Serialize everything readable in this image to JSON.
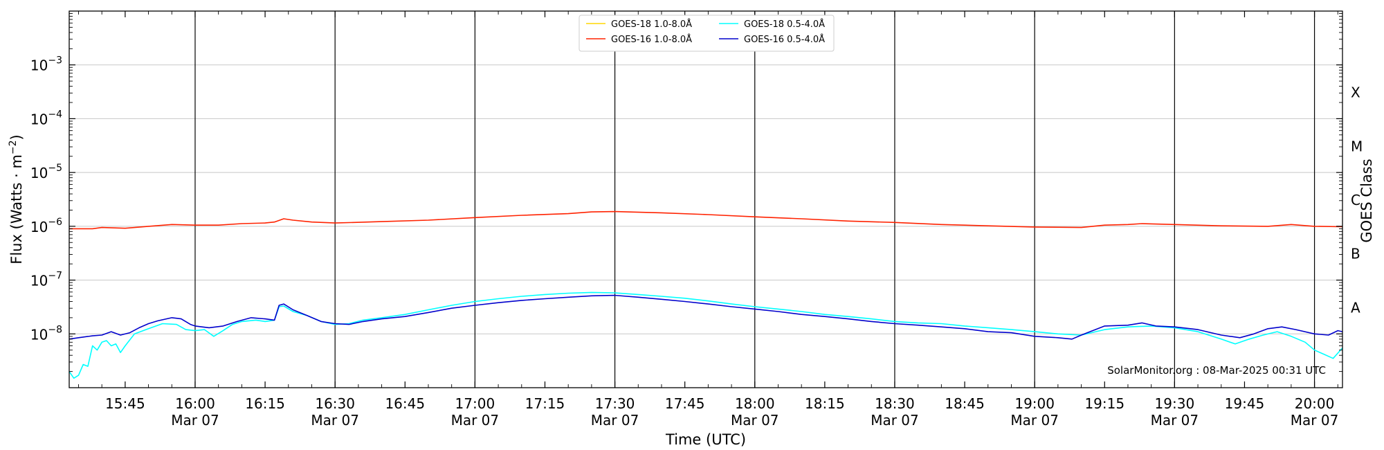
{
  "chart_data": {
    "type": "line",
    "title": "",
    "xlabel": "Time (UTC)",
    "ylabel_main": "Flux (Watts · m",
    "ylabel_sup": "−2",
    "ylabel_close": ")",
    "y2label": "GOES Class",
    "yscale": "log",
    "ylim": [
      1e-09,
      0.01
    ],
    "xlim": [
      "15:33",
      "20:06"
    ],
    "y_ticks": [
      {
        "value": 1e-08,
        "mant": "10",
        "exp": "−8"
      },
      {
        "value": 1e-07,
        "mant": "10",
        "exp": "−7"
      },
      {
        "value": 1e-06,
        "mant": "10",
        "exp": "−6"
      },
      {
        "value": 1e-05,
        "mant": "10",
        "exp": "−5"
      },
      {
        "value": 0.0001,
        "mant": "10",
        "exp": "−4"
      },
      {
        "value": 0.001,
        "mant": "10",
        "exp": "−3"
      }
    ],
    "goes_classes": [
      {
        "label": "A",
        "value": 3.16e-08
      },
      {
        "label": "B",
        "value": 3.16e-07
      },
      {
        "label": "C",
        "value": 3.16e-06
      },
      {
        "label": "M",
        "value": 3.16e-05
      },
      {
        "label": "X",
        "value": 0.000316
      }
    ],
    "x_ticks": [
      {
        "time": "15:45",
        "date": ""
      },
      {
        "time": "16:00",
        "date": "Mar 07"
      },
      {
        "time": "16:15",
        "date": ""
      },
      {
        "time": "16:30",
        "date": "Mar 07"
      },
      {
        "time": "16:45",
        "date": ""
      },
      {
        "time": "17:00",
        "date": "Mar 07"
      },
      {
        "time": "17:15",
        "date": ""
      },
      {
        "time": "17:30",
        "date": "Mar 07"
      },
      {
        "time": "17:45",
        "date": ""
      },
      {
        "time": "18:00",
        "date": "Mar 07"
      },
      {
        "time": "18:15",
        "date": ""
      },
      {
        "time": "18:30",
        "date": "Mar 07"
      },
      {
        "time": "18:45",
        "date": ""
      },
      {
        "time": "19:00",
        "date": "Mar 07"
      },
      {
        "time": "19:15",
        "date": ""
      },
      {
        "time": "19:30",
        "date": "Mar 07"
      },
      {
        "time": "19:45",
        "date": ""
      },
      {
        "time": "20:00",
        "date": "Mar 07"
      }
    ],
    "vertical_lines": [
      "16:00",
      "16:30",
      "17:00",
      "17:30",
      "18:00",
      "18:30",
      "19:00",
      "19:30",
      "20:00"
    ],
    "grid": true,
    "legend_position": "top-center",
    "watermark": "SolarMonitor.org : 08-Mar-2025 00:31 UTC",
    "series": [
      {
        "name": "GOES-18 1.0-8.0Å",
        "color": "#ffd700",
        "points": []
      },
      {
        "name": "GOES-18 0.5-4.0Å",
        "color": "#00ffff",
        "points": [
          [
            "15:33",
            2e-09
          ],
          [
            "15:34",
            1.5e-09
          ],
          [
            "15:35",
            1.7e-09
          ],
          [
            "15:36",
            2.7e-09
          ],
          [
            "15:37",
            2.5e-09
          ],
          [
            "15:38",
            6e-09
          ],
          [
            "15:39",
            5e-09
          ],
          [
            "15:40",
            7e-09
          ],
          [
            "15:41",
            7.5e-09
          ],
          [
            "15:42",
            6e-09
          ],
          [
            "15:43",
            6.5e-09
          ],
          [
            "15:44",
            4.5e-09
          ],
          [
            "15:45",
            6e-09
          ],
          [
            "15:47",
            1e-08
          ],
          [
            "15:50",
            1.25e-08
          ],
          [
            "15:53",
            1.55e-08
          ],
          [
            "15:56",
            1.5e-08
          ],
          [
            "15:58",
            1.2e-08
          ],
          [
            "16:00",
            1.15e-08
          ],
          [
            "16:02",
            1.2e-08
          ],
          [
            "16:04",
            9e-09
          ],
          [
            "16:06",
            1.15e-08
          ],
          [
            "16:08",
            1.5e-08
          ],
          [
            "16:10",
            1.7e-08
          ],
          [
            "16:13",
            1.8e-08
          ],
          [
            "16:15",
            1.7e-08
          ],
          [
            "16:17",
            1.8e-08
          ],
          [
            "16:18",
            3.2e-08
          ],
          [
            "16:19",
            3.3e-08
          ],
          [
            "16:21",
            2.6e-08
          ],
          [
            "16:24",
            2.2e-08
          ],
          [
            "16:27",
            1.7e-08
          ],
          [
            "16:30",
            1.5e-08
          ],
          [
            "16:33",
            1.55e-08
          ],
          [
            "16:36",
            1.8e-08
          ],
          [
            "16:40",
            2e-08
          ],
          [
            "16:45",
            2.3e-08
          ],
          [
            "16:50",
            2.8e-08
          ],
          [
            "16:55",
            3.4e-08
          ],
          [
            "17:00",
            4e-08
          ],
          [
            "17:05",
            4.5e-08
          ],
          [
            "17:10",
            5e-08
          ],
          [
            "17:15",
            5.4e-08
          ],
          [
            "17:20",
            5.7e-08
          ],
          [
            "17:25",
            5.9e-08
          ],
          [
            "17:30",
            5.8e-08
          ],
          [
            "17:35",
            5.4e-08
          ],
          [
            "17:40",
            5e-08
          ],
          [
            "17:45",
            4.6e-08
          ],
          [
            "17:50",
            4.1e-08
          ],
          [
            "17:55",
            3.6e-08
          ],
          [
            "18:00",
            3.2e-08
          ],
          [
            "18:05",
            2.9e-08
          ],
          [
            "18:10",
            2.6e-08
          ],
          [
            "18:15",
            2.3e-08
          ],
          [
            "18:20",
            2.1e-08
          ],
          [
            "18:25",
            1.9e-08
          ],
          [
            "18:30",
            1.7e-08
          ],
          [
            "18:35",
            1.6e-08
          ],
          [
            "18:40",
            1.55e-08
          ],
          [
            "18:45",
            1.4e-08
          ],
          [
            "18:50",
            1.3e-08
          ],
          [
            "18:55",
            1.2e-08
          ],
          [
            "19:00",
            1.1e-08
          ],
          [
            "19:05",
            1e-08
          ],
          [
            "19:10",
            9.5e-09
          ],
          [
            "19:15",
            1.2e-08
          ],
          [
            "19:20",
            1.35e-08
          ],
          [
            "19:25",
            1.4e-08
          ],
          [
            "19:30",
            1.3e-08
          ],
          [
            "19:35",
            1.1e-08
          ],
          [
            "19:40",
            8e-09
          ],
          [
            "19:43",
            6.5e-09
          ],
          [
            "19:46",
            8e-09
          ],
          [
            "19:49",
            9.5e-09
          ],
          [
            "19:52",
            1.1e-08
          ],
          [
            "19:55",
            9e-09
          ],
          [
            "19:58",
            7e-09
          ],
          [
            "20:00",
            5e-09
          ],
          [
            "20:02",
            4.2e-09
          ],
          [
            "20:04",
            3.5e-09
          ],
          [
            "20:06",
            5.5e-09
          ]
        ]
      },
      {
        "name": "GOES-16 1.0-8.0Å",
        "color": "#ff2200",
        "points": [
          [
            "15:33",
            9e-07
          ],
          [
            "15:38",
            9e-07
          ],
          [
            "15:40",
            9.5e-07
          ],
          [
            "15:45",
            9.2e-07
          ],
          [
            "15:50",
            1e-06
          ],
          [
            "15:55",
            1.08e-06
          ],
          [
            "16:00",
            1.05e-06
          ],
          [
            "16:05",
            1.05e-06
          ],
          [
            "16:10",
            1.12e-06
          ],
          [
            "16:15",
            1.15e-06
          ],
          [
            "16:17",
            1.2e-06
          ],
          [
            "16:19",
            1.38e-06
          ],
          [
            "16:21",
            1.3e-06
          ],
          [
            "16:25",
            1.2e-06
          ],
          [
            "16:30",
            1.15e-06
          ],
          [
            "16:40",
            1.22e-06
          ],
          [
            "16:50",
            1.3e-06
          ],
          [
            "17:00",
            1.45e-06
          ],
          [
            "17:10",
            1.6e-06
          ],
          [
            "17:20",
            1.72e-06
          ],
          [
            "17:25",
            1.85e-06
          ],
          [
            "17:30",
            1.88e-06
          ],
          [
            "17:40",
            1.78e-06
          ],
          [
            "17:50",
            1.65e-06
          ],
          [
            "18:00",
            1.5e-06
          ],
          [
            "18:10",
            1.38e-06
          ],
          [
            "18:20",
            1.25e-06
          ],
          [
            "18:30",
            1.18e-06
          ],
          [
            "18:40",
            1.08e-06
          ],
          [
            "18:50",
            1.02e-06
          ],
          [
            "19:00",
            9.7e-07
          ],
          [
            "19:10",
            9.5e-07
          ],
          [
            "19:15",
            1.05e-06
          ],
          [
            "19:20",
            1.08e-06
          ],
          [
            "19:23",
            1.12e-06
          ],
          [
            "19:30",
            1.08e-06
          ],
          [
            "19:40",
            1.02e-06
          ],
          [
            "19:50",
            1e-06
          ],
          [
            "19:55",
            1.08e-06
          ],
          [
            "20:00",
            1e-06
          ],
          [
            "20:06",
            9.8e-07
          ]
        ]
      },
      {
        "name": "GOES-16 0.5-4.0Å",
        "color": "#0000cc",
        "points": [
          [
            "15:33",
            8e-09
          ],
          [
            "15:35",
            8.5e-09
          ],
          [
            "15:38",
            9.2e-09
          ],
          [
            "15:40",
            9.5e-09
          ],
          [
            "15:42",
            1.1e-08
          ],
          [
            "15:44",
            9.5e-09
          ],
          [
            "15:46",
            1.05e-08
          ],
          [
            "15:48",
            1.3e-08
          ],
          [
            "15:50",
            1.55e-08
          ],
          [
            "15:52",
            1.75e-08
          ],
          [
            "15:55",
            2e-08
          ],
          [
            "15:57",
            1.9e-08
          ],
          [
            "15:59",
            1.5e-08
          ],
          [
            "16:00",
            1.4e-08
          ],
          [
            "16:03",
            1.3e-08
          ],
          [
            "16:06",
            1.4e-08
          ],
          [
            "16:09",
            1.7e-08
          ],
          [
            "16:12",
            2e-08
          ],
          [
            "16:15",
            1.9e-08
          ],
          [
            "16:17",
            1.8e-08
          ],
          [
            "16:18",
            3.4e-08
          ],
          [
            "16:19",
            3.6e-08
          ],
          [
            "16:21",
            2.8e-08
          ],
          [
            "16:24",
            2.2e-08
          ],
          [
            "16:27",
            1.7e-08
          ],
          [
            "16:30",
            1.55e-08
          ],
          [
            "16:33",
            1.5e-08
          ],
          [
            "16:36",
            1.7e-08
          ],
          [
            "16:40",
            1.9e-08
          ],
          [
            "16:45",
            2.1e-08
          ],
          [
            "16:50",
            2.5e-08
          ],
          [
            "16:55",
            3e-08
          ],
          [
            "17:00",
            3.4e-08
          ],
          [
            "17:05",
            3.8e-08
          ],
          [
            "17:10",
            4.2e-08
          ],
          [
            "17:15",
            4.5e-08
          ],
          [
            "17:20",
            4.8e-08
          ],
          [
            "17:25",
            5.1e-08
          ],
          [
            "17:30",
            5.2e-08
          ],
          [
            "17:35",
            4.8e-08
          ],
          [
            "17:40",
            4.4e-08
          ],
          [
            "17:45",
            4e-08
          ],
          [
            "17:50",
            3.6e-08
          ],
          [
            "17:55",
            3.2e-08
          ],
          [
            "18:00",
            2.9e-08
          ],
          [
            "18:05",
            2.6e-08
          ],
          [
            "18:10",
            2.3e-08
          ],
          [
            "18:15",
            2.1e-08
          ],
          [
            "18:20",
            1.9e-08
          ],
          [
            "18:25",
            1.7e-08
          ],
          [
            "18:30",
            1.55e-08
          ],
          [
            "18:35",
            1.45e-08
          ],
          [
            "18:40",
            1.35e-08
          ],
          [
            "18:45",
            1.25e-08
          ],
          [
            "18:50",
            1.1e-08
          ],
          [
            "18:55",
            1.05e-08
          ],
          [
            "19:00",
            9e-09
          ],
          [
            "19:05",
            8.5e-09
          ],
          [
            "19:08",
            8e-09
          ],
          [
            "19:10",
            9.5e-09
          ],
          [
            "19:15",
            1.4e-08
          ],
          [
            "19:20",
            1.45e-08
          ],
          [
            "19:23",
            1.6e-08
          ],
          [
            "19:26",
            1.4e-08
          ],
          [
            "19:30",
            1.35e-08
          ],
          [
            "19:35",
            1.2e-08
          ],
          [
            "19:40",
            9.5e-09
          ],
          [
            "19:44",
            8.5e-09
          ],
          [
            "19:47",
            1e-08
          ],
          [
            "19:50",
            1.25e-08
          ],
          [
            "19:53",
            1.35e-08
          ],
          [
            "19:56",
            1.2e-08
          ],
          [
            "20:00",
            1e-08
          ],
          [
            "20:03",
            9.5e-09
          ],
          [
            "20:05",
            1.15e-08
          ],
          [
            "20:06",
            1.1e-08
          ]
        ]
      }
    ]
  }
}
